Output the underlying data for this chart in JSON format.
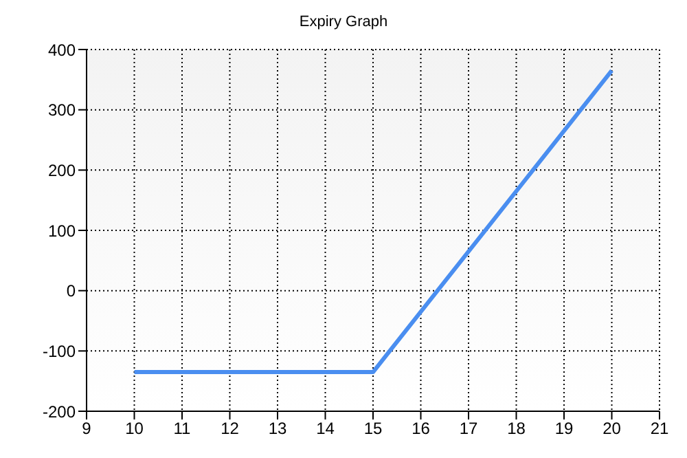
{
  "chart_data": {
    "type": "line",
    "title": "Expiry Graph",
    "x": [
      10,
      15,
      20
    ],
    "series": [
      {
        "color": "#4a8ef0",
        "values": [
          -135,
          -135,
          365
        ]
      }
    ],
    "xlim": [
      9,
      21
    ],
    "xticks": [
      9,
      10,
      11,
      12,
      13,
      14,
      15,
      16,
      17,
      18,
      19,
      20,
      21
    ],
    "ylim": [
      -200,
      400
    ],
    "yticks": [
      -200,
      -100,
      0,
      100,
      200,
      300,
      400
    ],
    "grid": true,
    "legend": false,
    "marker": "none",
    "line_style": "solid"
  }
}
